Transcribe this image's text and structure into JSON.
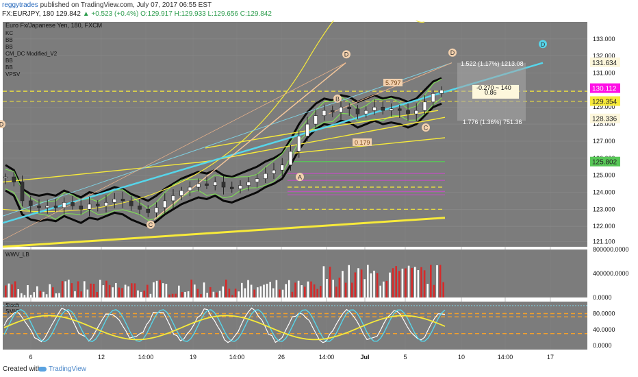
{
  "header": {
    "user": "reggytrades",
    "published": "published on TradingView.com, July 07, 2017 06:55 EST",
    "symbol": "FX:EURJPY, 180",
    "last": "129.842",
    "change": "+0.523 (+0.4%)",
    "ohlc": "O:129.917 H:129.933 L:129.656 C:129.842"
  },
  "footer": {
    "created_with": "Created with",
    "brand": "TradingView"
  },
  "colors": {
    "panel_bg": "#7c7c7c",
    "candle": "#ffffff",
    "yellow": "#f7ea3a",
    "cyan": "#56d5ea",
    "magenta": "#ff10e6",
    "green": "#7ed957",
    "volume_up": "#ffffff",
    "volume_down": "#d62a2a"
  },
  "chart_data": [
    {
      "type": "line",
      "title": "Euro Fx/Japanese Yen, 180, FXCM",
      "indicators": [
        "KC",
        "BB",
        "BB",
        "CM_DC Modified_V2",
        "BB",
        "BB",
        "VPSV"
      ],
      "ylim": [
        120.8,
        134.0
      ],
      "yticks": [
        121.1,
        122.0,
        123.0,
        124.0,
        125.0,
        126.0,
        127.0,
        128.0,
        129.0,
        130.0,
        131.0,
        132.0,
        133.0
      ],
      "ytick_labels": [
        "121.100",
        "122.000",
        "123.000",
        "124.000",
        "125.000",
        "126.000",
        "127.000",
        "128.000",
        "129.000",
        "130.000",
        "131.000",
        "132.000",
        "133.000"
      ],
      "xtick_labels": [
        "6",
        "12",
        "14:00",
        "19",
        "14:00",
        "26",
        "14:00",
        "Jul",
        "5",
        "10",
        "14:00",
        "17"
      ],
      "price_tags": [
        {
          "value": "131.634",
          "bg": "#fdf7dc",
          "fg": "#222"
        },
        {
          "value": "130.112",
          "bg": "#ff10e6",
          "fg": "#ffffff"
        },
        {
          "value": "129.354",
          "bg": "#f7ea3a",
          "fg": "#222"
        },
        {
          "value": "128.336",
          "bg": "#fdf7dc",
          "fg": "#222"
        },
        {
          "value": "125.802",
          "bg": "#58c758",
          "fg": "#222"
        }
      ],
      "horizontal_levels": [
        {
          "value": 129.93,
          "color": "#f7ea3a",
          "dash": true
        },
        {
          "value": 129.35,
          "color": "#f7ea3a",
          "dash": true
        },
        {
          "value": 125.8,
          "color": "#58c758",
          "dash": false
        },
        {
          "value": 125.1,
          "color": "#c050c0",
          "dash": false
        },
        {
          "value": 124.7,
          "color": "#c050c0",
          "dash": false
        },
        {
          "value": 124.3,
          "color": "#f7ea3a",
          "dash": true
        },
        {
          "value": 124.05,
          "color": "#c050c0",
          "dash": false
        },
        {
          "value": 123.85,
          "color": "#c050c0",
          "dash": false
        },
        {
          "value": 123.0,
          "color": "#f7ea3a",
          "dash": true
        }
      ],
      "pattern_labels": [
        "D",
        "D",
        "D",
        "B",
        "C",
        "C",
        "A",
        "D"
      ],
      "annotations": [
        "1.522 (1.17%) 1213.08",
        "-0.270 ~ 140",
        "0.86",
        "1.776 (1.36%) 751.36",
        "5.797",
        "0.179"
      ],
      "series": [
        {
          "values": [
            124.9,
            124.6,
            123.5,
            123.2,
            123.1,
            123.2,
            123.1,
            123.4,
            123.2,
            123.0,
            123.3,
            123.2,
            123.4,
            123.6,
            123.5,
            123.2,
            123.0,
            122.8,
            123.1,
            123.5,
            123.8,
            124.1,
            124.3,
            124.5,
            124.4,
            124.6,
            124.3,
            124.2,
            124.4,
            124.6,
            124.8,
            125.1,
            125.3,
            125.6,
            126.4,
            127.3,
            128.0,
            128.5,
            128.8,
            128.7,
            129.0,
            128.9,
            128.6,
            128.8,
            129.0,
            128.8,
            128.9,
            128.8,
            128.6,
            128.8,
            129.3,
            129.8,
            130.0
          ]
        }
      ]
    },
    {
      "type": "bar",
      "title": "WWV_LB",
      "ylim": [
        0,
        800000
      ],
      "ytick_labels": [
        "800000.0000",
        "400000.0000",
        "0.0000"
      ]
    },
    {
      "type": "line",
      "title": "Stoch",
      "subtitle": "SMIO",
      "ylim": [
        -10,
        110
      ],
      "ytick_labels": [
        "80.0000",
        "40.0000",
        "0.0000"
      ],
      "levels": [
        80,
        72,
        30
      ]
    }
  ]
}
